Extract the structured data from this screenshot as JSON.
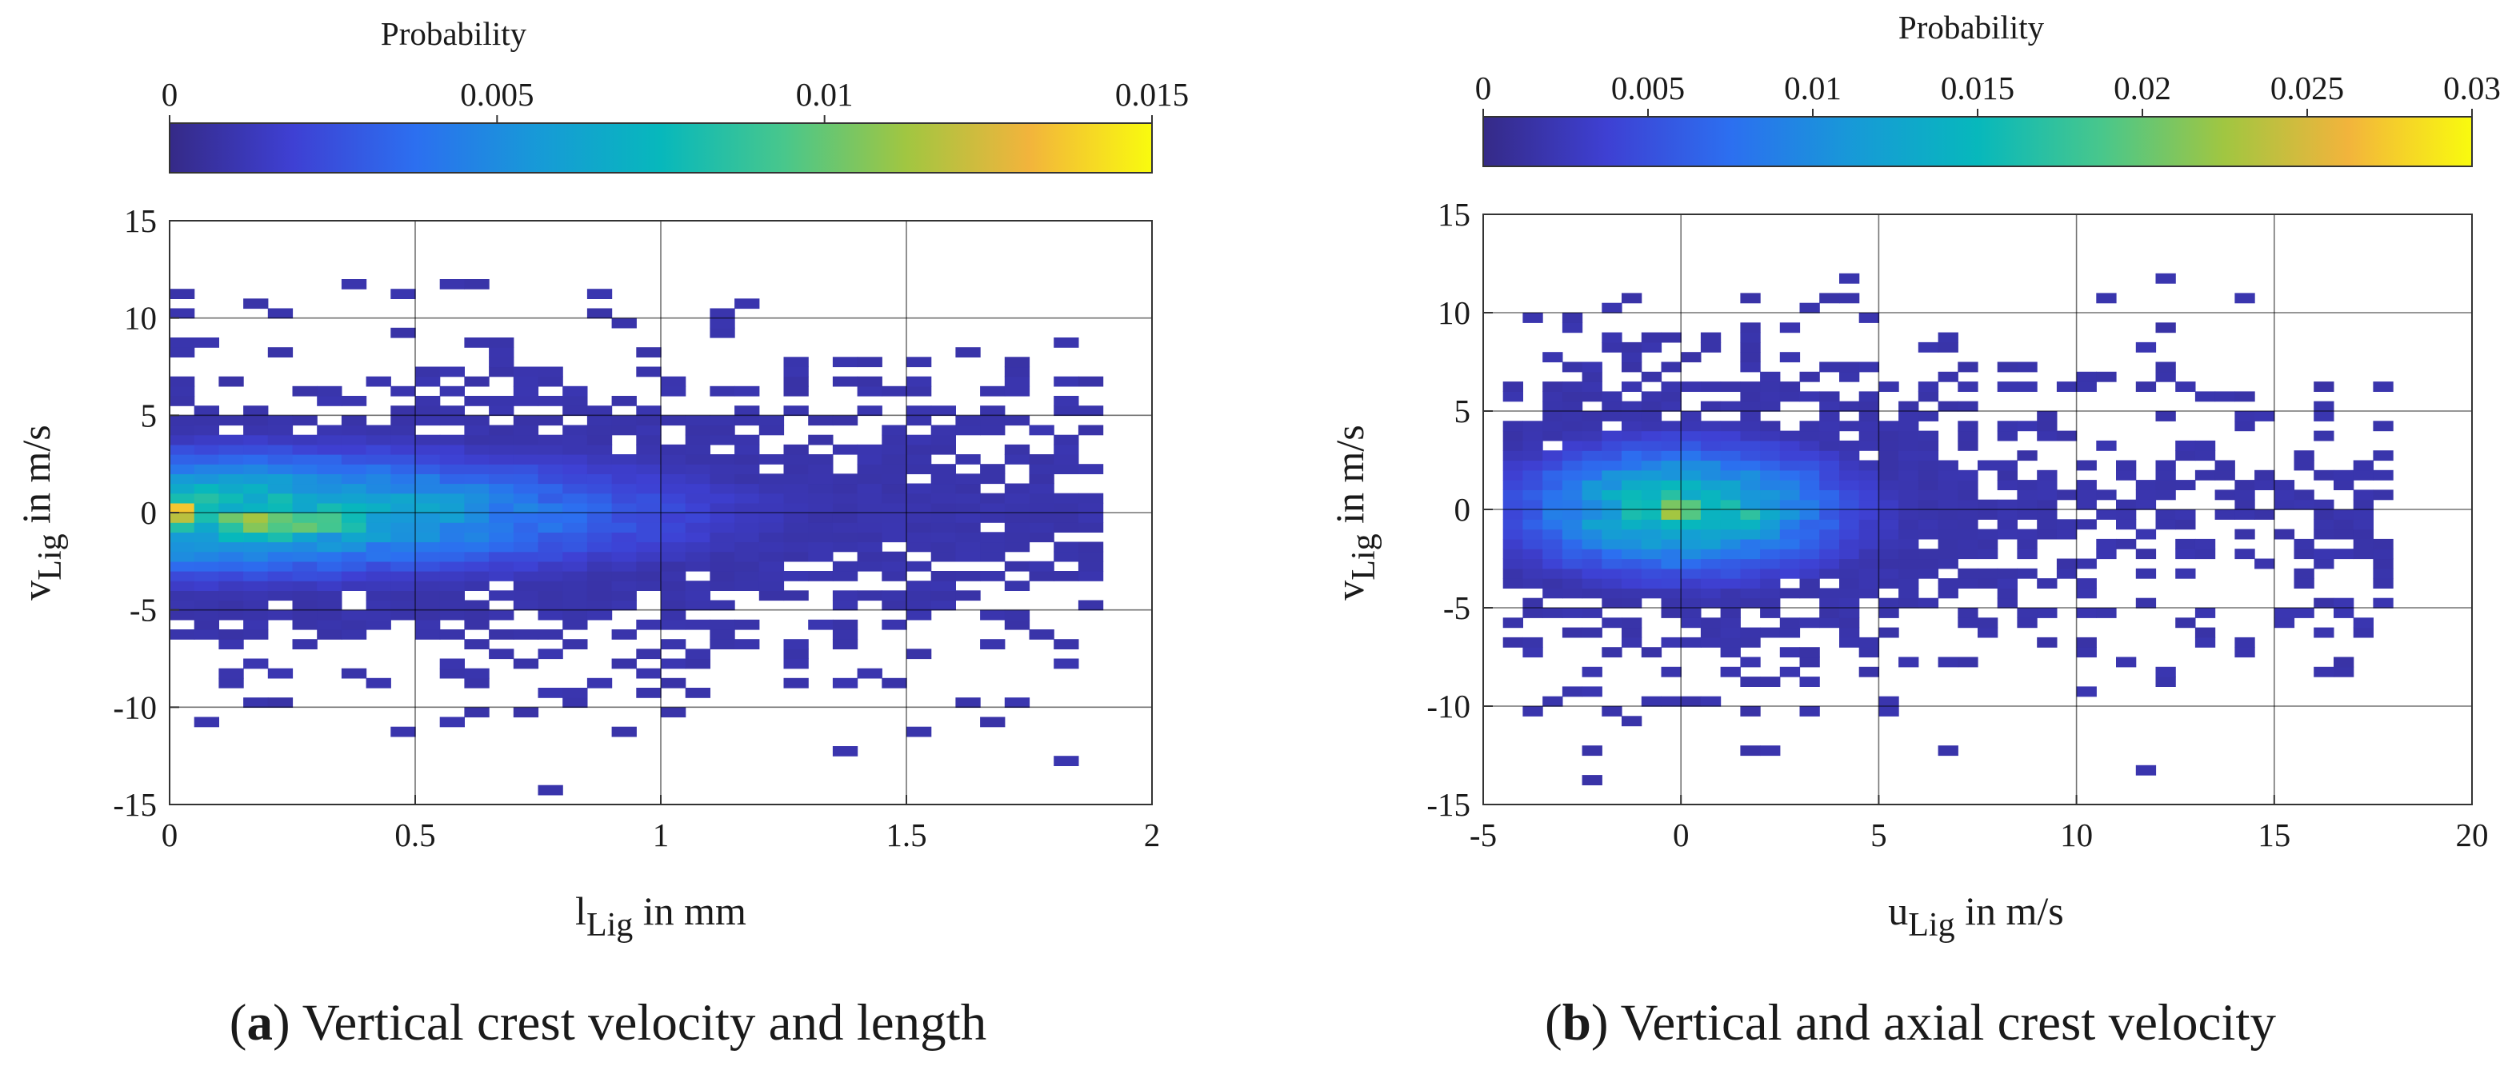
{
  "chart_data": [
    {
      "type": "heatmap",
      "caption_letter": "a",
      "caption_text": "Vertical crest velocity and length",
      "xlabel_main": "l",
      "xlabel_sub": "Lig",
      "xlabel_rest": " in mm",
      "ylabel_main": "v",
      "ylabel_sub": "Lig",
      "ylabel_rest": " in m/s",
      "xlim": [
        0,
        2
      ],
      "ylim": [
        -15,
        15
      ],
      "xticks": [
        "0",
        "0.5",
        "1",
        "1.5",
        "2"
      ],
      "xtick_values": [
        0,
        0.5,
        1,
        1.5,
        2
      ],
      "yticks": [
        "15",
        "10",
        "5",
        "0",
        "-5",
        "-10",
        "-15"
      ],
      "ytick_values": [
        15,
        10,
        5,
        0,
        -5,
        -10,
        -15
      ],
      "grid": true,
      "colorbar": {
        "label": "Probability",
        "ticks": [
          "0",
          "0.005",
          "0.01",
          "0.015"
        ],
        "tick_values": [
          0,
          0.005,
          0.01,
          0.015
        ],
        "range": [
          0,
          0.015
        ],
        "colormap": "parula"
      },
      "bin_size": [
        0.05,
        0.5
      ],
      "distribution": {
        "peak_x": 0.03,
        "peak_y": 0.0,
        "peak_p": 0.0145,
        "secondary_x": 0.22,
        "secondary_y": -0.5,
        "secondary_p": 0.0115,
        "x_extent": [
          0,
          1.9
        ],
        "y_extent": [
          -14.5,
          12
        ]
      }
    },
    {
      "type": "heatmap",
      "caption_letter": "b",
      "caption_text": "Vertical and axial crest velocity",
      "xlabel_main": "u",
      "xlabel_sub": "Lig",
      "xlabel_rest": " in m/s",
      "ylabel_main": "v",
      "ylabel_sub": "Lig",
      "ylabel_rest": " in m/s",
      "xlim": [
        -5,
        20
      ],
      "ylim": [
        -15,
        15
      ],
      "xticks": [
        "-5",
        "0",
        "5",
        "10",
        "15",
        "20"
      ],
      "xtick_values": [
        -5,
        0,
        5,
        10,
        15,
        20
      ],
      "yticks": [
        "15",
        "10",
        "5",
        "0",
        "-5",
        "-10",
        "-15"
      ],
      "ytick_values": [
        15,
        10,
        5,
        0,
        -5,
        -10,
        -15
      ],
      "grid": true,
      "colorbar": {
        "label": "Probability",
        "ticks": [
          "0",
          "0.005",
          "0.01",
          "0.015",
          "0.02",
          "0.025",
          "0.03"
        ],
        "tick_values": [
          0,
          0.005,
          0.01,
          0.015,
          0.02,
          0.025,
          0.03
        ],
        "range": [
          0,
          0.03
        ],
        "colormap": "parula"
      },
      "bin_size": [
        0.5,
        0.5
      ],
      "distribution": {
        "peak_x": 0.0,
        "peak_y": 0.0,
        "peak_p": 0.029,
        "secondary_x": 1.5,
        "secondary_y": -0.5,
        "secondary_p": 0.017,
        "x_extent": [
          -4.5,
          18
        ],
        "y_extent": [
          -14.5,
          12
        ]
      }
    }
  ]
}
